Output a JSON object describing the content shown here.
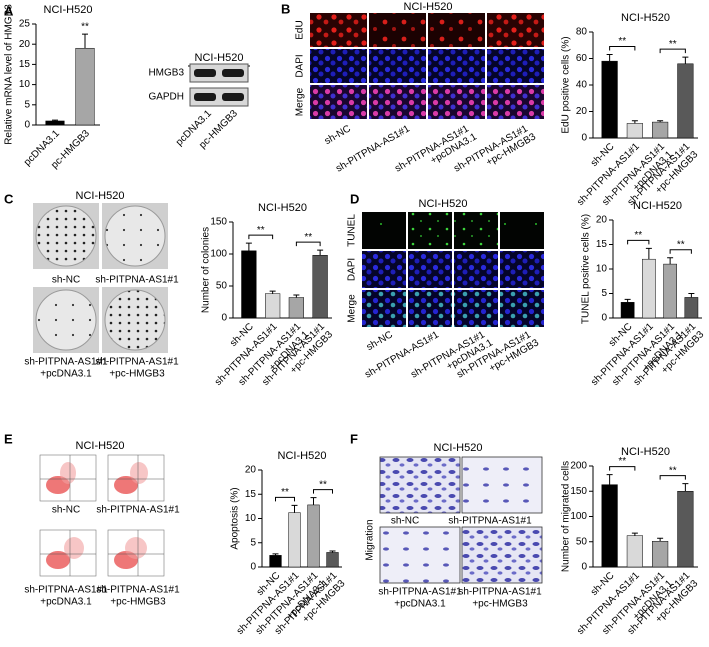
{
  "figure": {
    "panel_labels": [
      "A",
      "B",
      "C",
      "D",
      "E",
      "F"
    ],
    "blot": {
      "title": "NCI-H520",
      "rows": [
        "HMGB3",
        "GAPDH"
      ],
      "lanes": [
        "pcDNA3.1",
        "pc-HMGB3"
      ]
    },
    "edu": {
      "title": "NCI-H520",
      "rows": [
        "EdU",
        "DAPI",
        "Merge"
      ],
      "columns": [
        [
          "sh-NC"
        ],
        [
          "sh-PITPNA-AS1#1"
        ],
        [
          "sh-PITPNA-AS1#1",
          "+pcDNA3.1"
        ],
        [
          "sh-PITPNA-AS1#1",
          "+pc-HMGB3"
        ]
      ]
    },
    "colony": {
      "title": "NCI-H520",
      "labels": [
        [
          "sh-NC"
        ],
        [
          "sh-PITPNA-AS1#1"
        ],
        [
          "sh-PITPNA-AS1#1",
          "+pcDNA3.1"
        ],
        [
          "sh-PITPNA-AS1#1",
          "+pc-HMGB3"
        ]
      ]
    },
    "tunel": {
      "title": "NCI-H520",
      "rows": [
        "TUNEL",
        "DAPI",
        "Merge"
      ],
      "columns": [
        [
          "sh-NC"
        ],
        [
          "sh-PITPNA-AS1#1"
        ],
        [
          "sh-PITPNA-AS1#1",
          "+pcDNA3.1"
        ],
        [
          "sh-PITPNA-AS1#1",
          "+pc-HMGB3"
        ]
      ]
    },
    "flow": {
      "title": "NCI-H520",
      "labels": [
        [
          "sh-NC"
        ],
        [
          "sh-PITPNA-AS1#1"
        ],
        [
          "sh-PITPNA-AS1#1",
          "+pcDNA3.1"
        ],
        [
          "sh-PITPNA-AS1#1",
          "+pc-HMGB3"
        ]
      ]
    },
    "migration": {
      "title": "NCI-H520",
      "side_label": "Migration",
      "labels": [
        [
          "sh-NC"
        ],
        [
          "sh-PITPNA-AS1#1"
        ],
        [
          "sh-PITPNA-AS1#1",
          "+pcDNA3.1"
        ],
        [
          "sh-PITPNA-AS1#1",
          "+pc-HMGB3"
        ]
      ]
    }
  },
  "chart_data": [
    {
      "type": "bar",
      "title": "NCI-H520",
      "y_label": "Relative mRNA level of HMGB3",
      "categories": [
        [
          "pcDNA3.1"
        ],
        [
          "pc-HMGB3"
        ]
      ],
      "values": [
        1,
        19
      ],
      "errors": [
        0.2,
        3.5
      ],
      "colors": [
        "#000000",
        "#a6a6a6"
      ],
      "ylim": [
        0,
        25
      ],
      "yticks": [
        0,
        5,
        10,
        15,
        20,
        25
      ],
      "annotations": [
        "**"
      ]
    },
    {
      "type": "bar",
      "title": "NCI-H520",
      "y_label": "EdU positive cells (%)",
      "categories": [
        [
          "sh-NC"
        ],
        [
          "sh-PITPNA-AS1#1"
        ],
        [
          "sh-PITPNA-AS1#1",
          "+pcDNA3.1"
        ],
        [
          "sh-PITPNA-AS1#1",
          "+pc-HMGB3"
        ]
      ],
      "values": [
        58,
        11,
        12,
        56
      ],
      "errors": [
        5,
        2,
        1,
        5
      ],
      "colors": [
        "#000000",
        "#d9d9d9",
        "#a6a6a6",
        "#595959"
      ],
      "ylim": [
        0,
        80
      ],
      "yticks": [
        0,
        20,
        40,
        60,
        80
      ],
      "annotations": [
        "**",
        "**"
      ]
    },
    {
      "type": "bar",
      "title": "NCI-H520",
      "y_label": "Number of colonies",
      "categories": [
        [
          "sh-NC"
        ],
        [
          "sh-PITPNA-AS1#1"
        ],
        [
          "sh-PITPNA-AS1#1",
          "+pcDNA3.1"
        ],
        [
          "sh-PITPNA-AS1#1",
          "+pc-HMGB3"
        ]
      ],
      "values": [
        105,
        38,
        32,
        98
      ],
      "errors": [
        12,
        4,
        4,
        8
      ],
      "colors": [
        "#000000",
        "#d9d9d9",
        "#a6a6a6",
        "#595959"
      ],
      "ylim": [
        0,
        150
      ],
      "yticks": [
        0,
        50,
        100,
        150
      ],
      "annotations": [
        "**",
        "**"
      ]
    },
    {
      "type": "bar",
      "title": "NCI-H520",
      "y_label": "TUNEL positive cells (%)",
      "categories": [
        [
          "sh-NC"
        ],
        [
          "sh-PITPNA-AS1#1"
        ],
        [
          "sh-PITPNA-AS1#1",
          "+pcDNA3.1"
        ],
        [
          "sh-PITPNA-AS1#1",
          "+pc-HMGB3"
        ]
      ],
      "values": [
        3.2,
        12,
        11,
        4.2
      ],
      "errors": [
        0.6,
        2.2,
        1.3,
        0.8
      ],
      "colors": [
        "#000000",
        "#d9d9d9",
        "#a6a6a6",
        "#595959"
      ],
      "ylim": [
        0,
        20
      ],
      "yticks": [
        0,
        5,
        10,
        15,
        20
      ],
      "annotations": [
        "**",
        "**"
      ]
    },
    {
      "type": "bar",
      "title": "NCI-H520",
      "y_label": "Apoptosis (%)",
      "categories": [
        [
          "sh-NC"
        ],
        [
          "sh-PITPNA-AS1#1"
        ],
        [
          "sh-PITPNA-AS1#1",
          "+pcDNA3.1"
        ],
        [
          "sh-PITPNA-AS1#1",
          "+pc-HMGB3"
        ]
      ],
      "values": [
        2.4,
        11.2,
        12.8,
        3
      ],
      "errors": [
        0.3,
        1.5,
        1.5,
        0.3
      ],
      "colors": [
        "#000000",
        "#d9d9d9",
        "#a6a6a6",
        "#595959"
      ],
      "ylim": [
        0,
        20
      ],
      "yticks": [
        0,
        5,
        10,
        15,
        20
      ],
      "annotations": [
        "**",
        "**"
      ]
    },
    {
      "type": "bar",
      "title": "NCI-H520",
      "y_label": "Number of migrated cells",
      "categories": [
        [
          "sh-NC"
        ],
        [
          "sh-PITPNA-AS1#1"
        ],
        [
          "sh-PITPNA-AS1#1",
          "+pcDNA3.1"
        ],
        [
          "sh-PITPNA-AS1#1",
          "+pc-HMGB3"
        ]
      ],
      "values": [
        163,
        62,
        51,
        150
      ],
      "errors": [
        20,
        5,
        6,
        15
      ],
      "colors": [
        "#000000",
        "#d9d9d9",
        "#a6a6a6",
        "#595959"
      ],
      "ylim": [
        0,
        200
      ],
      "yticks": [
        0,
        50,
        100,
        150,
        200
      ],
      "annotations": [
        "**",
        "**"
      ]
    }
  ]
}
